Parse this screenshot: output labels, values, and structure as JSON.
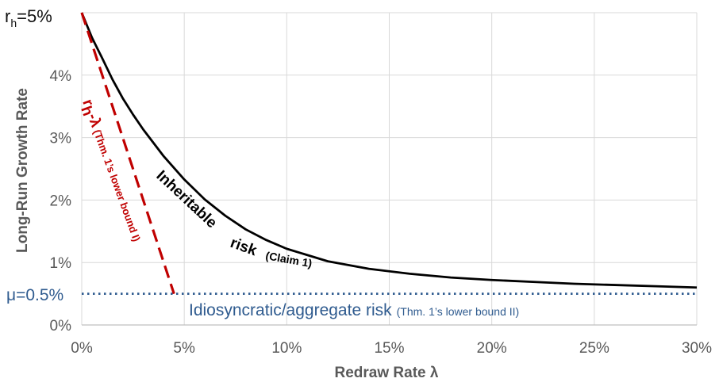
{
  "chart_data": {
    "type": "line",
    "xlabel": "Redraw Rate λ",
    "ylabel": "Long-Run Growth Rate",
    "xlim": [
      0,
      30
    ],
    "ylim": [
      0,
      5
    ],
    "x_ticks": [
      "0%",
      "5%",
      "10%",
      "15%",
      "20%",
      "25%",
      "30%"
    ],
    "y_ticks": [
      "0%",
      "1%",
      "2%",
      "3%",
      "4%"
    ],
    "y_top_label": {
      "main": "r",
      "sub": "h",
      "rest": "=5%"
    },
    "mu_label": "μ=0.5%",
    "grid": true,
    "series": [
      {
        "style": "solid",
        "color": "#000000",
        "x": [
          0,
          0.5,
          1,
          1.5,
          2,
          2.5,
          3,
          4,
          5,
          6,
          7,
          8,
          9,
          10,
          12,
          14,
          16,
          18,
          20,
          22,
          24,
          26,
          28,
          30
        ],
        "y": [
          5.0,
          4.6,
          4.27,
          3.93,
          3.63,
          3.37,
          3.13,
          2.7,
          2.33,
          2.01,
          1.75,
          1.53,
          1.36,
          1.22,
          1.02,
          0.9,
          0.82,
          0.76,
          0.72,
          0.69,
          0.66,
          0.64,
          0.62,
          0.6
        ]
      },
      {
        "style": "dashed",
        "color": "#c00000",
        "x": [
          0,
          4.5
        ],
        "y": [
          5.0,
          0.5
        ]
      },
      {
        "style": "dotted",
        "color": "#2f5b8f",
        "x": [
          0,
          30
        ],
        "y": [
          0.5,
          0.5
        ]
      }
    ],
    "annotations": {
      "inheritable": {
        "big1": "Inheritable",
        "big2": "risk",
        "small": "(Claim 1)"
      },
      "red_bound": {
        "main": "r",
        "sub": "h",
        "rest": "-λ",
        "small": "(Thm. 1’s lower bound I)"
      },
      "idio": {
        "big": "Idiosyncratic/aggregate risk",
        "small": "(Thm. 1’s lower bound II)"
      }
    }
  }
}
